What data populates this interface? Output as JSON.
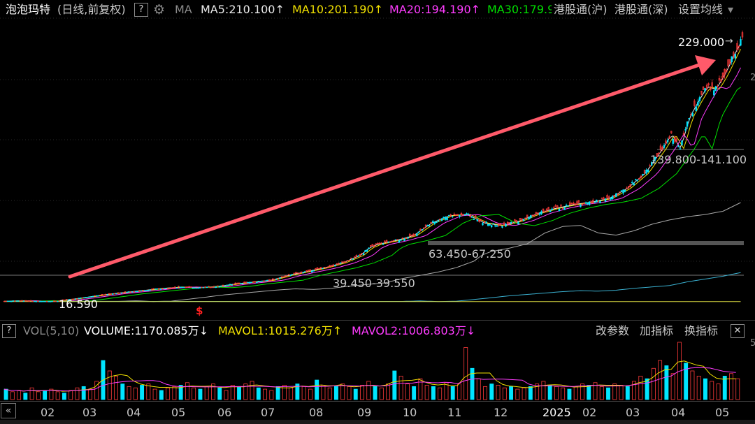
{
  "header": {
    "name": "泡泡玛特",
    "mode": "(日线,前复权)",
    "help": "?",
    "ma_label": "MA",
    "indicators": [
      {
        "text": "MA5:210.100",
        "arrow": "↑",
        "color": "#e8e8e8"
      },
      {
        "text": "MA10:201.190",
        "arrow": "↑",
        "color": "#f0e000"
      },
      {
        "text": "MA20:194.190",
        "arrow": "↑",
        "color": "#ff3cff"
      },
      {
        "text": "MA30:179.9",
        "arrow": "",
        "color": "#00e000"
      }
    ],
    "links": [
      "港股通(沪)",
      "港股通(深)",
      "设置均线"
    ],
    "dropdown": "▾"
  },
  "price_labels": {
    "high": "229.000",
    "low": "16.590",
    "band1": "139.800-141.100",
    "band2": "63.450-67.250",
    "band3": "39.450-39.550",
    "marker": "$"
  },
  "volume": {
    "help": "?",
    "label": "VOL(5,10)",
    "volume": "VOLUME:1170.085万",
    "volume_arrow": "↓",
    "mavol1": "MAVOL1:1015.276万",
    "mavol1_arrow": "↑",
    "mavol2": "MAVOL2:1006.803万",
    "mavol2_arrow": "↓",
    "actions": [
      "改参数",
      "加指标",
      "换指标"
    ],
    "close": "✕"
  },
  "right_edge": {
    "top": "2",
    "vol": "5"
  },
  "colors": {
    "up": "#ff3b3b",
    "down": "#00e5ff",
    "ma5": "#e8e8e8",
    "ma10": "#f0e000",
    "ma20": "#ff3cff",
    "ma30": "#00e000",
    "ma60": "#aaaaaa",
    "ma120": "#3ab0d0",
    "ma250": "#d8d840",
    "arrow": "#ff5a6a"
  },
  "chart_data": {
    "type": "candlestick",
    "x_ticks": [
      "02",
      "03",
      "04",
      "05",
      "06",
      "07",
      "08",
      "09",
      "10",
      "11",
      "12",
      "2025",
      "02",
      "03",
      "04",
      "05"
    ],
    "price_range": [
      16.59,
      229.0
    ],
    "annotated_high": 229.0,
    "annotated_low": 16.59,
    "levels": [
      "139.800-141.100",
      "63.450-67.250",
      "39.450-39.550"
    ],
    "series": [
      {
        "name": "MA5",
        "last": 210.1
      },
      {
        "name": "MA10",
        "last": 201.19
      },
      {
        "name": "MA20",
        "last": 194.19
      },
      {
        "name": "MA30",
        "last": 179.9
      }
    ],
    "volume_series": [
      {
        "name": "VOLUME",
        "last": "1170.085万"
      },
      {
        "name": "MAVOL1",
        "last": "1015.276万"
      },
      {
        "name": "MAVOL2",
        "last": "1006.803万"
      }
    ],
    "price_path": [
      [
        0,
        17.0
      ],
      [
        10,
        17.5
      ],
      [
        20,
        16.8
      ],
      [
        30,
        17.2
      ],
      [
        40,
        19.0
      ],
      [
        50,
        21.0
      ],
      [
        60,
        23.0
      ],
      [
        70,
        24.5
      ],
      [
        80,
        26.0
      ],
      [
        90,
        27.5
      ],
      [
        100,
        28.5
      ],
      [
        110,
        28.0
      ],
      [
        120,
        29.0
      ],
      [
        130,
        31.0
      ],
      [
        140,
        32.5
      ],
      [
        150,
        34.0
      ],
      [
        160,
        38.0
      ],
      [
        170,
        41.0
      ],
      [
        180,
        44.0
      ],
      [
        190,
        48.0
      ],
      [
        200,
        54.0
      ],
      [
        205,
        60.0
      ],
      [
        210,
        63.0
      ],
      [
        220,
        66.0
      ],
      [
        230,
        70.0
      ],
      [
        240,
        80.0
      ],
      [
        250,
        86.0
      ],
      [
        260,
        87.0
      ],
      [
        270,
        80.0
      ],
      [
        280,
        78.0
      ],
      [
        290,
        82.0
      ],
      [
        300,
        88.0
      ],
      [
        310,
        92.0
      ],
      [
        320,
        95.0
      ],
      [
        330,
        97.0
      ],
      [
        340,
        100.0
      ],
      [
        350,
        108.0
      ],
      [
        360,
        120.0
      ],
      [
        370,
        140.0
      ],
      [
        375,
        152.0
      ],
      [
        380,
        140.0
      ],
      [
        385,
        165.0
      ],
      [
        390,
        178.0
      ],
      [
        395,
        190.0
      ],
      [
        400,
        188.0
      ],
      [
        405,
        200.0
      ],
      [
        410,
        215.0
      ],
      [
        415,
        229.0
      ]
    ],
    "volume_bars": [
      8,
      6,
      7,
      5,
      9,
      6,
      7,
      8,
      6,
      5,
      7,
      9,
      10,
      8,
      14,
      30,
      22,
      18,
      12,
      10,
      9,
      11,
      12,
      8,
      7,
      9,
      10,
      11,
      13,
      9,
      8,
      10,
      12,
      9,
      7,
      11,
      10,
      12,
      14,
      9,
      8,
      7,
      10,
      11,
      9,
      12,
      10,
      8,
      15,
      11,
      9,
      10,
      12,
      10,
      8,
      11,
      14,
      10,
      9,
      12,
      22,
      18,
      12,
      10,
      16,
      11,
      10,
      9,
      13,
      10,
      12,
      40,
      24,
      16,
      10,
      12,
      11,
      9,
      10,
      8,
      9,
      10,
      12,
      14,
      11,
      10,
      9,
      8,
      10,
      12,
      11,
      13,
      10,
      9,
      12,
      11,
      10,
      14,
      18,
      16,
      24,
      30,
      26,
      20,
      44,
      28,
      22,
      18,
      16,
      14,
      12,
      18,
      20,
      16
    ]
  }
}
